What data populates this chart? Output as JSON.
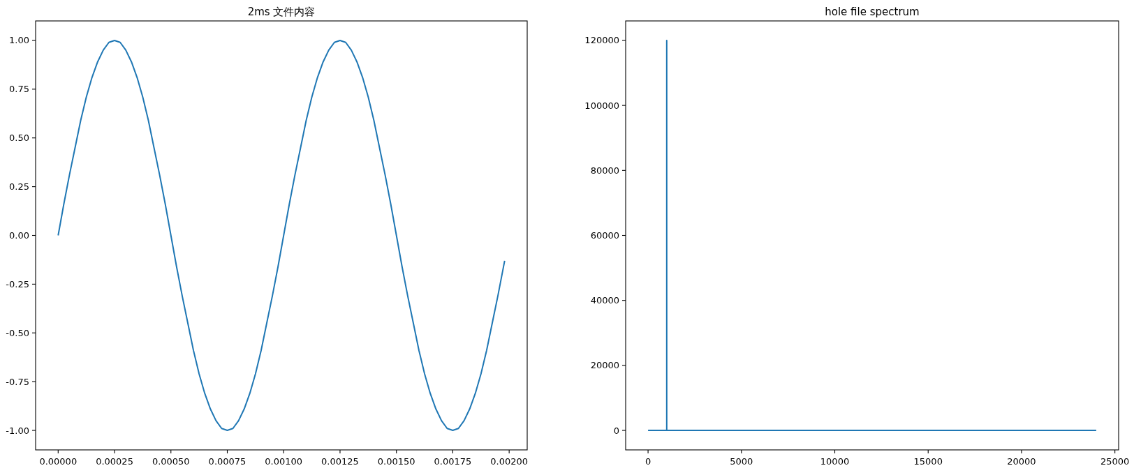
{
  "chart_data": [
    {
      "type": "line",
      "title": "2ms 文件内容",
      "color": "#1f77b4",
      "x": [
        0,
        2.5e-05,
        5e-05,
        7.5e-05,
        0.0001,
        0.000125,
        0.00015,
        0.000175,
        0.0002,
        0.000225,
        0.00025,
        0.000275,
        0.0003,
        0.000325,
        0.00035,
        0.000375,
        0.0004,
        0.000425,
        0.00045,
        0.000475,
        0.0005,
        0.000525,
        0.00055,
        0.000575,
        0.0006,
        0.000625,
        0.00065,
        0.000675,
        0.0007,
        0.000725,
        0.00075,
        0.000775,
        0.0008,
        0.000825,
        0.00085,
        0.000875,
        0.0009,
        0.000925,
        0.00095,
        0.000975,
        0.001,
        0.001025,
        0.00105,
        0.001075,
        0.0011,
        0.001125,
        0.00115,
        0.001175,
        0.0012,
        0.001225,
        0.00125,
        0.001275,
        0.0013,
        0.001325,
        0.00135,
        0.001375,
        0.0014,
        0.001425,
        0.00145,
        0.001475,
        0.0015,
        0.001525,
        0.00155,
        0.001575,
        0.0016,
        0.001625,
        0.00165,
        0.001675,
        0.0017,
        0.001725,
        0.00175,
        0.001775,
        0.0018,
        0.001825,
        0.00185,
        0.001875,
        0.0019,
        0.001925,
        0.00195,
        0.00198
      ],
      "values": [
        0,
        0.16,
        0.31,
        0.45,
        0.59,
        0.71,
        0.81,
        0.89,
        0.95,
        0.99,
        1,
        0.99,
        0.95,
        0.89,
        0.81,
        0.71,
        0.59,
        0.45,
        0.31,
        0.16,
        0,
        -0.16,
        -0.31,
        -0.45,
        -0.59,
        -0.71,
        -0.81,
        -0.89,
        -0.95,
        -0.99,
        -1,
        -0.99,
        -0.95,
        -0.89,
        -0.81,
        -0.71,
        -0.59,
        -0.45,
        -0.31,
        -0.16,
        0,
        0.16,
        0.31,
        0.45,
        0.59,
        0.71,
        0.81,
        0.89,
        0.95,
        0.99,
        1,
        0.99,
        0.95,
        0.89,
        0.81,
        0.71,
        0.59,
        0.45,
        0.31,
        0.16,
        0,
        -0.16,
        -0.31,
        -0.45,
        -0.59,
        -0.71,
        -0.81,
        -0.89,
        -0.95,
        -0.99,
        -1,
        -0.99,
        -0.95,
        -0.89,
        -0.81,
        -0.71,
        -0.59,
        -0.45,
        -0.31,
        -0.13
      ],
      "xlim": [
        -0.0001,
        0.00208
      ],
      "ylim": [
        -1.1,
        1.1
      ],
      "xticks": [
        {
          "value": 0,
          "label": "0.00000"
        },
        {
          "value": 0.00025,
          "label": "0.00025"
        },
        {
          "value": 0.0005,
          "label": "0.00050"
        },
        {
          "value": 0.00075,
          "label": "0.00075"
        },
        {
          "value": 0.001,
          "label": "0.00100"
        },
        {
          "value": 0.00125,
          "label": "0.00125"
        },
        {
          "value": 0.0015,
          "label": "0.00150"
        },
        {
          "value": 0.00175,
          "label": "0.00175"
        },
        {
          "value": 0.002,
          "label": "0.00200"
        }
      ],
      "yticks": [
        {
          "value": -1,
          "label": "-1.00"
        },
        {
          "value": -0.75,
          "label": "-0.75"
        },
        {
          "value": -0.5,
          "label": "-0.50"
        },
        {
          "value": -0.25,
          "label": "-0.25"
        },
        {
          "value": 0,
          "label": "0.00"
        },
        {
          "value": 0.25,
          "label": "0.25"
        },
        {
          "value": 0.5,
          "label": "0.50"
        },
        {
          "value": 0.75,
          "label": "0.75"
        },
        {
          "value": 1,
          "label": "1.00"
        }
      ]
    },
    {
      "type": "line",
      "title": "hole file spectrum",
      "color": "#1f77b4",
      "x": [
        0,
        1000,
        1000,
        1000,
        24000
      ],
      "values": [
        0,
        0,
        120000,
        0,
        0
      ],
      "xlim": [
        -1200,
        25200
      ],
      "ylim": [
        -6000,
        126000
      ],
      "xticks": [
        0,
        5000,
        10000,
        15000,
        20000,
        25000
      ],
      "yticks": [
        0,
        20000,
        40000,
        60000,
        80000,
        100000,
        120000
      ]
    }
  ]
}
